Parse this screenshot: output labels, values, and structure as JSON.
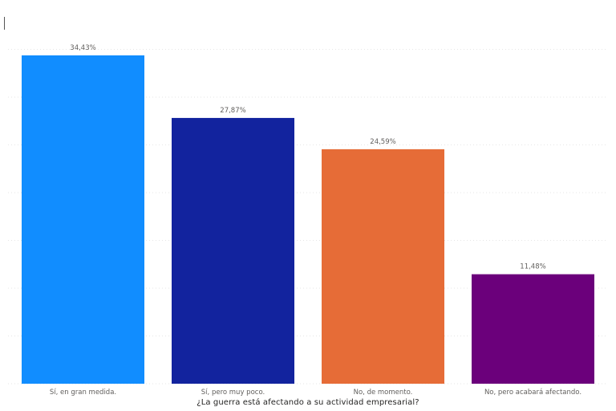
{
  "chart_data": {
    "type": "bar",
    "title": "",
    "xlabel": "¿La guerra está afectando a su actividad empresarial?",
    "ylabel": "",
    "ylim": [
      0,
      34.43
    ],
    "grid": true,
    "categories": [
      "Sí, en gran medida.",
      "Sí, pero muy poco.",
      "No, de momento.",
      "No, pero acabará afectando."
    ],
    "values": [
      34.43,
      27.87,
      24.59,
      11.48
    ],
    "data_labels": [
      "34,43%",
      "27,87%",
      "24,59%",
      "11,48%"
    ],
    "colors": [
      "#118dff",
      "#12239e",
      "#e66c37",
      "#6b007b"
    ]
  }
}
